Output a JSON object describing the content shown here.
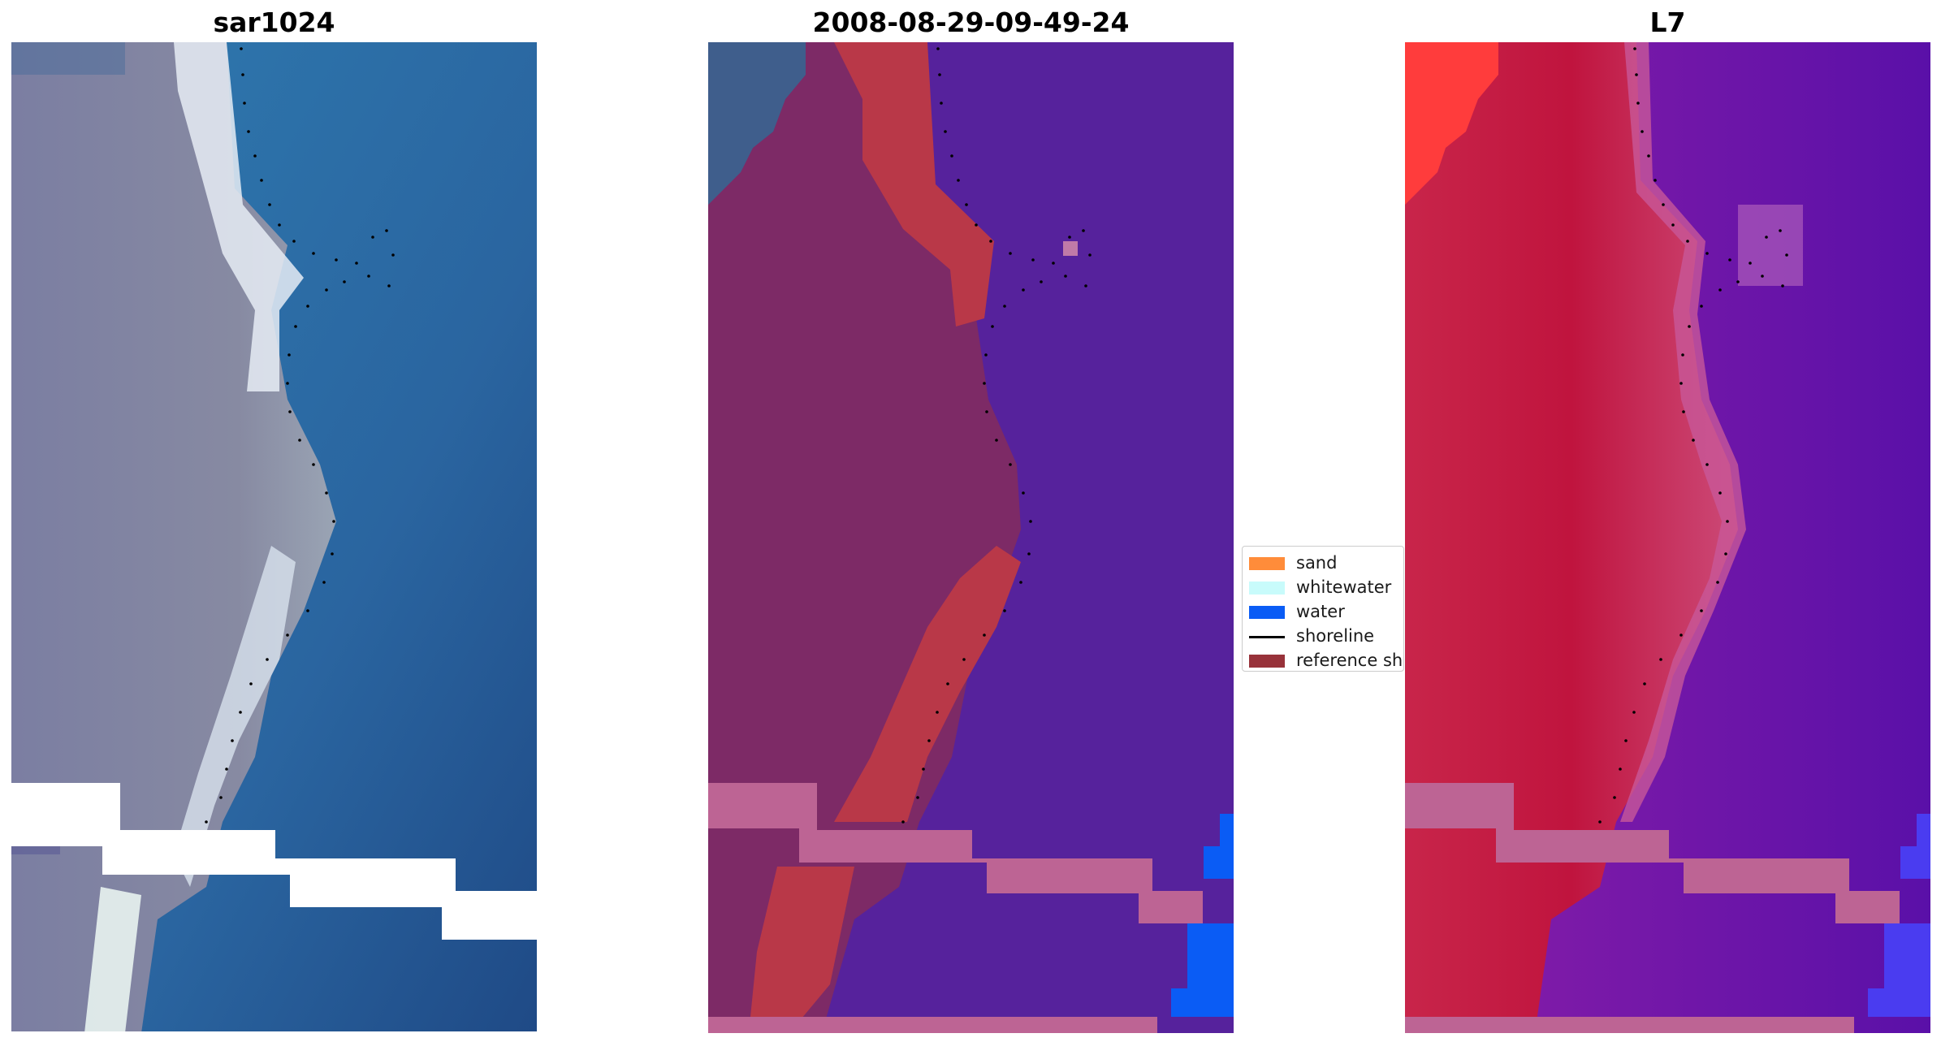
{
  "panels": [
    {
      "title": "sar1024",
      "kind": "rgb"
    },
    {
      "title": "2008-08-29-09-49-24",
      "kind": "classified"
    },
    {
      "title": "L7",
      "kind": "mndwi"
    }
  ],
  "legend": {
    "items": [
      {
        "label": "sand",
        "color": "#ff8c3a",
        "kind": "patch"
      },
      {
        "label": "whitewater",
        "color": "#c8fbfb",
        "kind": "patch"
      },
      {
        "label": "water",
        "color": "#0a5cf5",
        "kind": "patch"
      },
      {
        "label": "shoreline",
        "color": "#000000",
        "kind": "line"
      },
      {
        "label": "reference shoreline",
        "color": "#98323a",
        "kind": "patch"
      }
    ]
  },
  "colors": {
    "ocean": "#2a6aa0",
    "ocean_deep": "#234e86",
    "land_grey": "#7f7f98",
    "surf": "#e4ecf4",
    "classified_water": "#56229c",
    "classified_land": "#7d2a66",
    "reference_band": "#b93848",
    "nodata_stripe": "#bd6494",
    "mndwi_land": "#c41a45",
    "mndwi_water": "#6612a4",
    "water_blue": "#0a5cf5",
    "shoreline_dots": "#000000"
  }
}
